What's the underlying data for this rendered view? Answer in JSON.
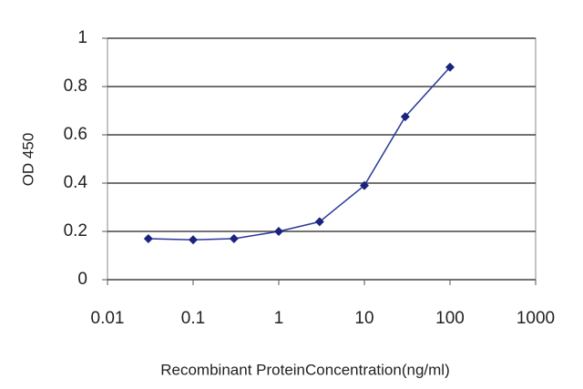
{
  "chart_data": {
    "type": "line",
    "x_label": "Recombinant ProteinConcentration(ng/ml)",
    "y_label": "OD 450",
    "x": [
      0.03,
      0.1,
      0.3,
      1,
      3,
      10,
      30,
      100
    ],
    "series": [
      {
        "color": "#2a3899",
        "values": [
          0.17,
          0.165,
          0.17,
          0.2,
          0.24,
          0.39,
          0.675,
          0.88
        ]
      }
    ],
    "xscale": "log",
    "xlim": [
      0.01,
      1000
    ],
    "xticks": [
      0.01,
      0.1,
      1,
      10,
      100,
      1000
    ],
    "ylim": [
      0,
      1
    ],
    "yticks": [
      0,
      0.2,
      0.4,
      0.6,
      0.8,
      1
    ],
    "grid": true
  }
}
